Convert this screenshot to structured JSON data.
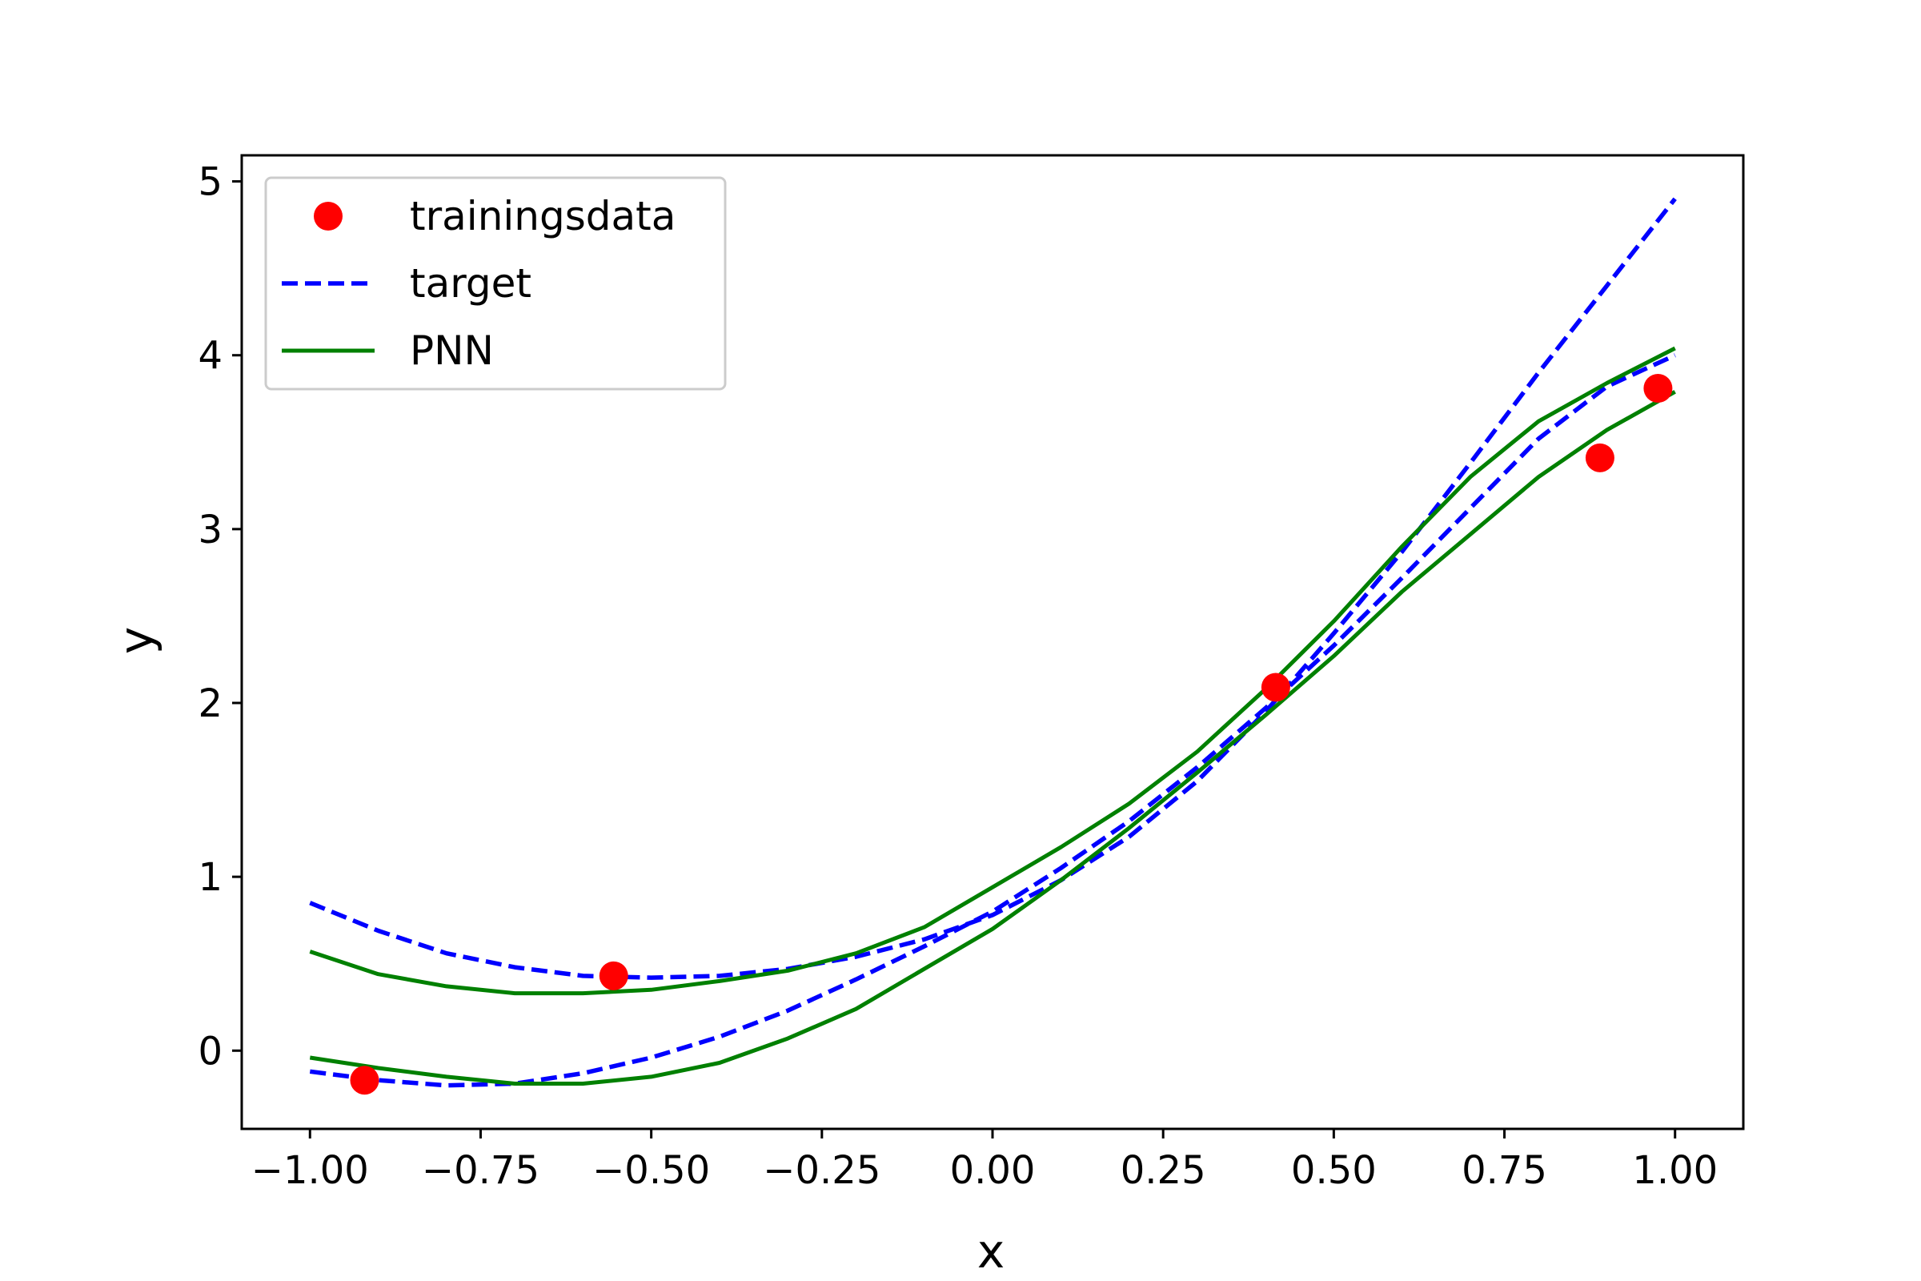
{
  "chart_data": {
    "type": "line",
    "xlabel": "x",
    "ylabel": "y",
    "xlim": [
      -1.1,
      1.1
    ],
    "ylim": [
      -0.45,
      5.15
    ],
    "grid": false,
    "legend_position": "top-left",
    "xticks": [
      {
        "value": -1.0,
        "label": "−1.00"
      },
      {
        "value": -0.75,
        "label": "−0.75"
      },
      {
        "value": -0.5,
        "label": "−0.50"
      },
      {
        "value": -0.25,
        "label": "−0.25"
      },
      {
        "value": 0.0,
        "label": "0.00"
      },
      {
        "value": 0.25,
        "label": "0.25"
      },
      {
        "value": 0.5,
        "label": "0.50"
      },
      {
        "value": 0.75,
        "label": "0.75"
      },
      {
        "value": 1.0,
        "label": "1.00"
      }
    ],
    "yticks": [
      {
        "value": 0,
        "label": "0"
      },
      {
        "value": 1,
        "label": "1"
      },
      {
        "value": 2,
        "label": "2"
      },
      {
        "value": 3,
        "label": "3"
      },
      {
        "value": 4,
        "label": "4"
      },
      {
        "value": 5,
        "label": "5"
      }
    ],
    "legend": [
      {
        "label": "trainingsdata",
        "color": "#ff0000",
        "style": "marker"
      },
      {
        "label": "target",
        "color": "#0000ff",
        "style": "dashed"
      },
      {
        "label": "PNN",
        "color": "#008000",
        "style": "solid"
      }
    ],
    "trainingsdata": {
      "color": "#ff0000",
      "points": [
        [
          -0.92,
          -0.17
        ],
        [
          -0.555,
          0.43
        ],
        [
          0.415,
          2.09
        ],
        [
          0.89,
          3.41
        ],
        [
          0.975,
          3.81
        ]
      ]
    },
    "series": [
      {
        "legend_index": 1,
        "color": "#0000ff",
        "style": "dashed",
        "x": [
          -1.0,
          -0.9,
          -0.8,
          -0.7,
          -0.6,
          -0.5,
          -0.4,
          -0.3,
          -0.2,
          -0.1,
          0.0,
          0.1,
          0.2,
          0.3,
          0.4,
          0.5,
          0.6,
          0.7,
          0.8,
          0.9,
          1.0
        ],
        "y": [
          -0.12,
          -0.17,
          -0.2,
          -0.19,
          -0.13,
          -0.04,
          0.08,
          0.23,
          0.41,
          0.6,
          0.8,
          1.05,
          1.32,
          1.63,
          1.97,
          2.33,
          2.72,
          3.12,
          3.52,
          3.82,
          4.0
        ]
      },
      {
        "legend_index": 1,
        "color": "#0000ff",
        "style": "dashed",
        "x": [
          -1.0,
          -0.9,
          -0.8,
          -0.7,
          -0.6,
          -0.5,
          -0.4,
          -0.3,
          -0.2,
          -0.1,
          0.0,
          0.1,
          0.2,
          0.3,
          0.4,
          0.5,
          0.6,
          0.7,
          0.8,
          0.9,
          1.0
        ],
        "y": [
          0.85,
          0.69,
          0.56,
          0.48,
          0.43,
          0.42,
          0.43,
          0.47,
          0.54,
          0.64,
          0.78,
          0.98,
          1.23,
          1.55,
          1.95,
          2.4,
          2.87,
          3.38,
          3.9,
          4.4,
          4.9
        ]
      },
      {
        "legend_index": 2,
        "color": "#008000",
        "style": "solid",
        "x": [
          -1.0,
          -0.9,
          -0.8,
          -0.7,
          -0.6,
          -0.5,
          -0.4,
          -0.3,
          -0.2,
          -0.1,
          0.0,
          0.1,
          0.2,
          0.3,
          0.4,
          0.5,
          0.6,
          0.7,
          0.8,
          0.9,
          1.0
        ],
        "y": [
          -0.04,
          -0.1,
          -0.15,
          -0.19,
          -0.19,
          -0.15,
          -0.07,
          0.07,
          0.24,
          0.47,
          0.7,
          0.98,
          1.28,
          1.6,
          1.93,
          2.27,
          2.64,
          2.97,
          3.3,
          3.57,
          3.79
        ]
      },
      {
        "legend_index": 2,
        "color": "#008000",
        "style": "solid",
        "x": [
          -1.0,
          -0.9,
          -0.8,
          -0.7,
          -0.6,
          -0.5,
          -0.4,
          -0.3,
          -0.2,
          -0.1,
          0.0,
          0.1,
          0.2,
          0.3,
          0.4,
          0.5,
          0.6,
          0.7,
          0.8,
          0.9,
          1.0
        ],
        "y": [
          0.57,
          0.44,
          0.37,
          0.33,
          0.33,
          0.35,
          0.4,
          0.46,
          0.56,
          0.71,
          0.94,
          1.17,
          1.42,
          1.72,
          2.08,
          2.47,
          2.9,
          3.3,
          3.62,
          3.84,
          4.04
        ]
      }
    ]
  }
}
